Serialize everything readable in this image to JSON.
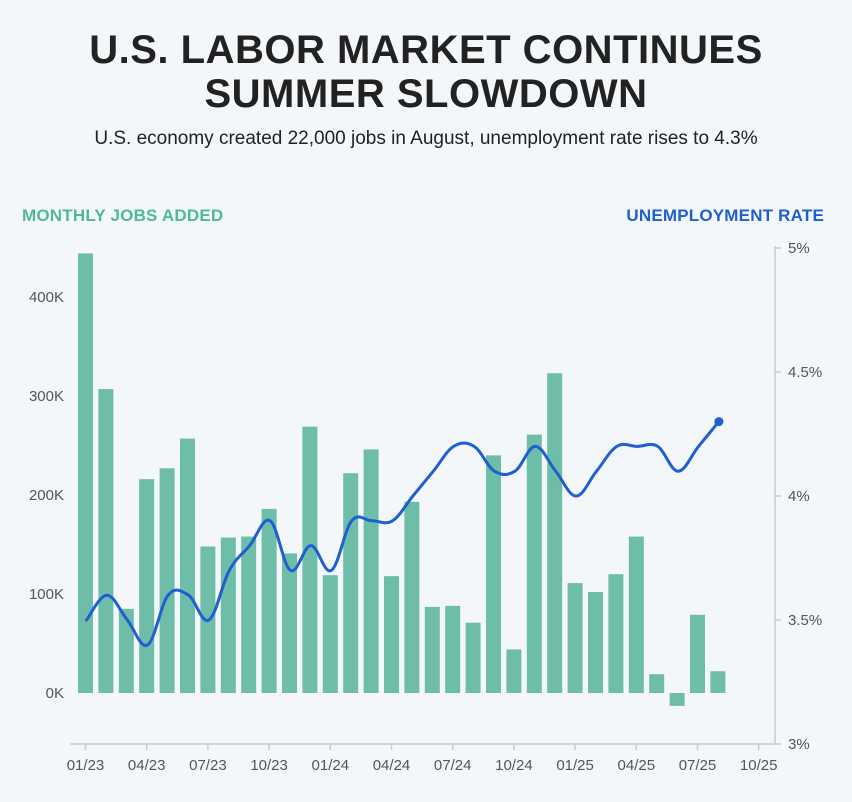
{
  "header": {
    "title_line1": "U.S. LABOR MARKET CONTINUES",
    "title_line2": "SUMMER SLOWDOWN",
    "subtitle": "U.S. economy created 22,000 jobs in August, unemployment rate rises to 4.3%"
  },
  "colors": {
    "bars": "#6dbda9",
    "line": "#1f5fd1",
    "left_label": "#4fb89a",
    "axis": "#cccccc"
  },
  "chart_data": {
    "type": "bar+line",
    "legend_left": "MONTHLY JOBS ADDED",
    "legend_right": "UNEMPLOYMENT RATE",
    "categories": [
      "Jan 2023",
      "Feb 2023",
      "Mar 2023",
      "Apr 2023",
      "May 2023",
      "Jun 2023",
      "Jul 2023",
      "Aug 2023",
      "Sep 2023",
      "Oct 2023",
      "Nov 2023",
      "Dec 2023",
      "Jan 2024",
      "Feb 2024",
      "Mar 2024",
      "Apr 2024",
      "May 2024",
      "Jun 2024",
      "Jul 2024",
      "Aug 2024",
      "Sep 2024",
      "Oct 2024",
      "Nov 2024",
      "Dec 2024",
      "Jan 2025",
      "Feb 2025",
      "Mar 2025",
      "Apr 2025",
      "May 2025",
      "Jun 2025",
      "Jul 2025",
      "Aug 2025"
    ],
    "series": [
      {
        "axis": "left",
        "kind": "bar",
        "values": [
          444000,
          307000,
          85000,
          216000,
          227000,
          257000,
          148000,
          157000,
          158000,
          186000,
          141000,
          269000,
          119000,
          222000,
          246000,
          118000,
          193000,
          87000,
          88000,
          71000,
          240000,
          44000,
          261000,
          323000,
          111000,
          102000,
          120000,
          158000,
          19000,
          -13000,
          79000,
          22000
        ]
      },
      {
        "axis": "right",
        "kind": "line",
        "values": [
          3.5,
          3.6,
          3.5,
          3.4,
          3.6,
          3.6,
          3.5,
          3.7,
          3.8,
          3.9,
          3.7,
          3.8,
          3.7,
          3.9,
          3.9,
          3.9,
          4.0,
          4.1,
          4.2,
          4.2,
          4.1,
          4.1,
          4.2,
          4.1,
          4.0,
          4.1,
          4.2,
          4.2,
          4.2,
          4.1,
          4.2,
          4.3
        ]
      }
    ],
    "left_axis": {
      "ylim": [
        -50000,
        450000
      ],
      "ticks": [
        0,
        100000,
        200000,
        300000,
        400000
      ],
      "tick_labels": [
        "0K",
        "100K",
        "200K",
        "300K",
        "400K"
      ]
    },
    "right_axis": {
      "ylim": [
        3.0,
        5.0
      ],
      "ticks": [
        3.0,
        3.5,
        4.0,
        4.5,
        5.0
      ],
      "tick_labels": [
        "3%",
        "3.5%",
        "4%",
        "4.5%",
        "5%"
      ]
    },
    "x_axis": {
      "ticks": [
        0,
        3,
        6,
        9,
        12,
        15,
        18,
        21,
        24,
        27,
        30,
        33
      ],
      "tick_labels": [
        "01/23",
        "04/23",
        "07/23",
        "10/23",
        "01/24",
        "04/24",
        "07/24",
        "10/24",
        "01/25",
        "04/25",
        "07/25",
        "10/25"
      ]
    }
  }
}
